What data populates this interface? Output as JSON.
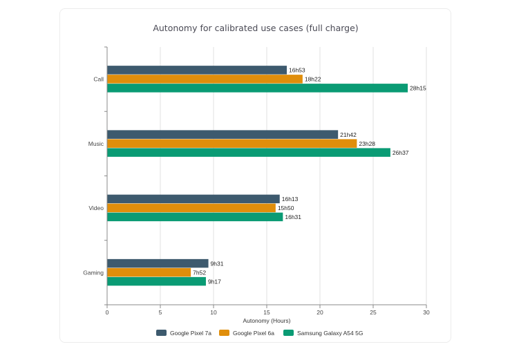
{
  "chart_data": {
    "type": "bar",
    "orientation": "horizontal",
    "title": "Autonomy for calibrated use cases (full charge)",
    "xlabel": "Autonomy (Hours)",
    "ylabel": "",
    "xlim": [
      0,
      30
    ],
    "x_ticks": [
      0,
      5,
      10,
      15,
      20,
      25,
      30
    ],
    "x_tick_labels": [
      "0",
      "5",
      "10",
      "15",
      "20",
      "25",
      "30"
    ],
    "grid": true,
    "legend_position": "bottom",
    "categories": [
      "Call",
      "Music",
      "Video",
      "Gaming"
    ],
    "series": [
      {
        "name": "Google Pixel 7a",
        "color": "#3d5a6e",
        "values": [
          16.883,
          21.7,
          16.217,
          9.517
        ],
        "labels": [
          "16h53",
          "21h42",
          "16h13",
          "9h31"
        ]
      },
      {
        "name": "Google Pixel 6a",
        "color": "#e08e0b",
        "values": [
          18.367,
          23.467,
          15.833,
          7.867
        ],
        "labels": [
          "18h22",
          "23h28",
          "15h50",
          "7h52"
        ]
      },
      {
        "name": "Samsung Galaxy A54 5G",
        "color": "#0a9b74",
        "values": [
          28.25,
          26.617,
          16.517,
          9.283
        ],
        "labels": [
          "28h15",
          "26h37",
          "16h31",
          "9h17"
        ]
      }
    ]
  }
}
